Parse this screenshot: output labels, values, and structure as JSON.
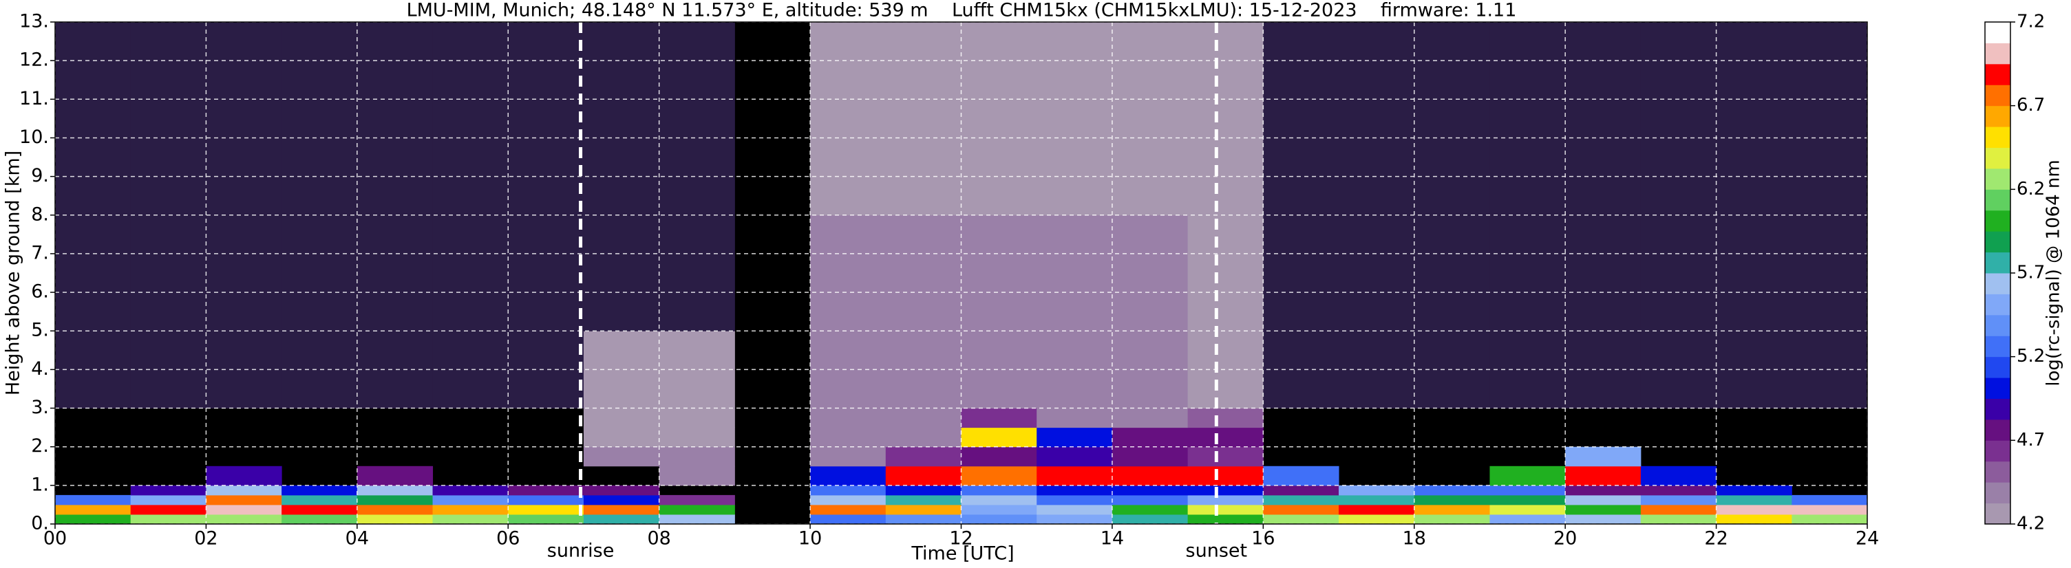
{
  "chart_data": {
    "type": "heatmap",
    "title": "LMU-MIM, Munich; 48.148° N 11.573° E, altitude: 539 m    Lufft CHM15kx (CHM15kxLMU): 15-12-2023    firmware: 1.11",
    "xlabel": "Time [UTC]",
    "ylabel": "Height above ground [km]",
    "x": [
      0,
      1,
      2,
      3,
      4,
      5,
      6,
      7,
      8,
      9,
      10,
      11,
      12,
      13,
      14,
      15,
      16,
      17,
      18,
      19,
      20,
      21,
      22,
      23,
      24
    ],
    "y": [
      0,
      0.25,
      0.5,
      0.75,
      1,
      1.5,
      2,
      2.5,
      3,
      5,
      8,
      13
    ],
    "values": [
      [
        6.0,
        6.2,
        6.3,
        6.1,
        6.4,
        6.3,
        6.1,
        5.8,
        5.6,
        null,
        5.3,
        5.4,
        5.4,
        5.5,
        5.8,
        6.0,
        6.3,
        6.4,
        6.3,
        5.5,
        5.6,
        6.2,
        6.5,
        6.3
      ],
      [
        6.6,
        6.9,
        7.0,
        6.9,
        6.8,
        6.6,
        6.5,
        6.8,
        6.0,
        null,
        6.8,
        6.6,
        5.5,
        5.6,
        6.0,
        6.4,
        6.8,
        6.9,
        6.6,
        6.4,
        6.0,
        6.8,
        7.0,
        7.0
      ],
      [
        5.2,
        5.5,
        6.8,
        5.8,
        5.9,
        5.4,
        5.3,
        5.0,
        4.6,
        null,
        5.6,
        5.8,
        5.6,
        5.3,
        5.2,
        5.5,
        5.8,
        5.8,
        5.9,
        5.9,
        5.6,
        5.4,
        5.8,
        5.2
      ],
      [
        null,
        4.9,
        5.6,
        5.0,
        5.6,
        4.9,
        4.8,
        4.8,
        null,
        null,
        5.2,
        5.0,
        5.2,
        5.0,
        5.0,
        5.0,
        4.8,
        5.5,
        5.2,
        5.3,
        4.8,
        4.8,
        5.0,
        null
      ],
      [
        null,
        null,
        4.9,
        null,
        4.8,
        null,
        null,
        null,
        4.4,
        null,
        5.0,
        6.9,
        6.8,
        6.9,
        6.9,
        6.9,
        5.2,
        null,
        null,
        6.0,
        6.9,
        5.0,
        null,
        null
      ],
      [
        null,
        null,
        null,
        null,
        null,
        null,
        null,
        4.4,
        4.4,
        null,
        4.4,
        4.6,
        4.8,
        4.9,
        4.8,
        4.6,
        null,
        null,
        null,
        null,
        5.5,
        null,
        null,
        null
      ],
      [
        null,
        null,
        null,
        null,
        null,
        null,
        null,
        4.3,
        4.3,
        null,
        4.4,
        4.4,
        6.5,
        5.0,
        4.7,
        4.8,
        null,
        null,
        null,
        null,
        null,
        null,
        null,
        null
      ],
      [
        null,
        null,
        null,
        null,
        null,
        null,
        null,
        4.3,
        4.3,
        null,
        4.4,
        4.4,
        4.6,
        4.4,
        4.4,
        4.5,
        null,
        null,
        null,
        null,
        null,
        null,
        null,
        null
      ],
      [
        4.0,
        4.0,
        4.0,
        4.0,
        4.0,
        4.0,
        4.0,
        4.2,
        4.2,
        null,
        4.4,
        4.4,
        4.4,
        4.4,
        4.4,
        4.3,
        4.0,
        4.0,
        4.0,
        4.0,
        4.0,
        4.0,
        4.0,
        4.0
      ],
      [
        4.0,
        4.0,
        4.0,
        4.0,
        4.0,
        4.0,
        4.0,
        4.1,
        4.1,
        null,
        4.4,
        4.4,
        4.4,
        4.4,
        4.4,
        4.3,
        4.0,
        4.0,
        4.0,
        4.0,
        4.0,
        4.0,
        4.0,
        4.0
      ],
      [
        4.0,
        4.0,
        4.0,
        4.0,
        4.0,
        4.0,
        4.0,
        4.0,
        4.0,
        null,
        4.2,
        4.2,
        4.2,
        4.2,
        4.2,
        4.2,
        4.0,
        4.0,
        4.0,
        4.0,
        4.0,
        4.0,
        4.0,
        4.0
      ]
    ],
    "xlim": [
      0,
      24
    ],
    "ylim": [
      0,
      13
    ],
    "xticks": [
      {
        "value": 0,
        "label": "00"
      },
      {
        "value": 2,
        "label": "02"
      },
      {
        "value": 4,
        "label": "04"
      },
      {
        "value": 6,
        "label": "06"
      },
      {
        "value": 8,
        "label": "08"
      },
      10,
      12,
      14,
      16,
      18,
      20,
      22,
      24
    ],
    "yticks": [
      {
        "value": 0,
        "label": "0."
      },
      {
        "value": 1,
        "label": "1."
      },
      {
        "value": 2,
        "label": "2."
      },
      {
        "value": 3,
        "label": "3."
      },
      {
        "value": 4,
        "label": "4."
      },
      {
        "value": 5,
        "label": "5."
      },
      {
        "value": 6,
        "label": "6."
      },
      {
        "value": 7,
        "label": "7."
      },
      {
        "value": 8,
        "label": "8."
      },
      {
        "value": 9,
        "label": "9."
      },
      {
        "value": 10,
        "label": "10."
      },
      {
        "value": 11,
        "label": "11."
      },
      {
        "value": 12,
        "label": "12."
      },
      {
        "value": 13,
        "label": "13."
      }
    ],
    "grid": true,
    "background": "#000000",
    "annotations": [
      {
        "x": 6.96,
        "text": "sunrise"
      },
      {
        "x": 15.38,
        "text": "sunset"
      }
    ],
    "colorbar": {
      "label": "log(rc-signal) @ 1064 nm",
      "clim": [
        4.2,
        7.2
      ],
      "ticks": [
        4.2,
        4.7,
        5.2,
        5.7,
        6.2,
        6.7,
        7.2
      ],
      "under_color": "#2a1d45",
      "colors": [
        "#a898b0",
        "#9a80a8",
        "#8c5c9c",
        "#7a3090",
        "#661080",
        "#3a00a8",
        "#0010e0",
        "#2048f0",
        "#4070f8",
        "#6090f8",
        "#80a8f8",
        "#a0c0f0",
        "#30b0a8",
        "#10a050",
        "#20b020",
        "#60d060",
        "#a0e870",
        "#e0f040",
        "#ffe000",
        "#ffa800",
        "#ff7000",
        "#ff0000",
        "#f0c0c0",
        "#ffffff"
      ]
    }
  }
}
